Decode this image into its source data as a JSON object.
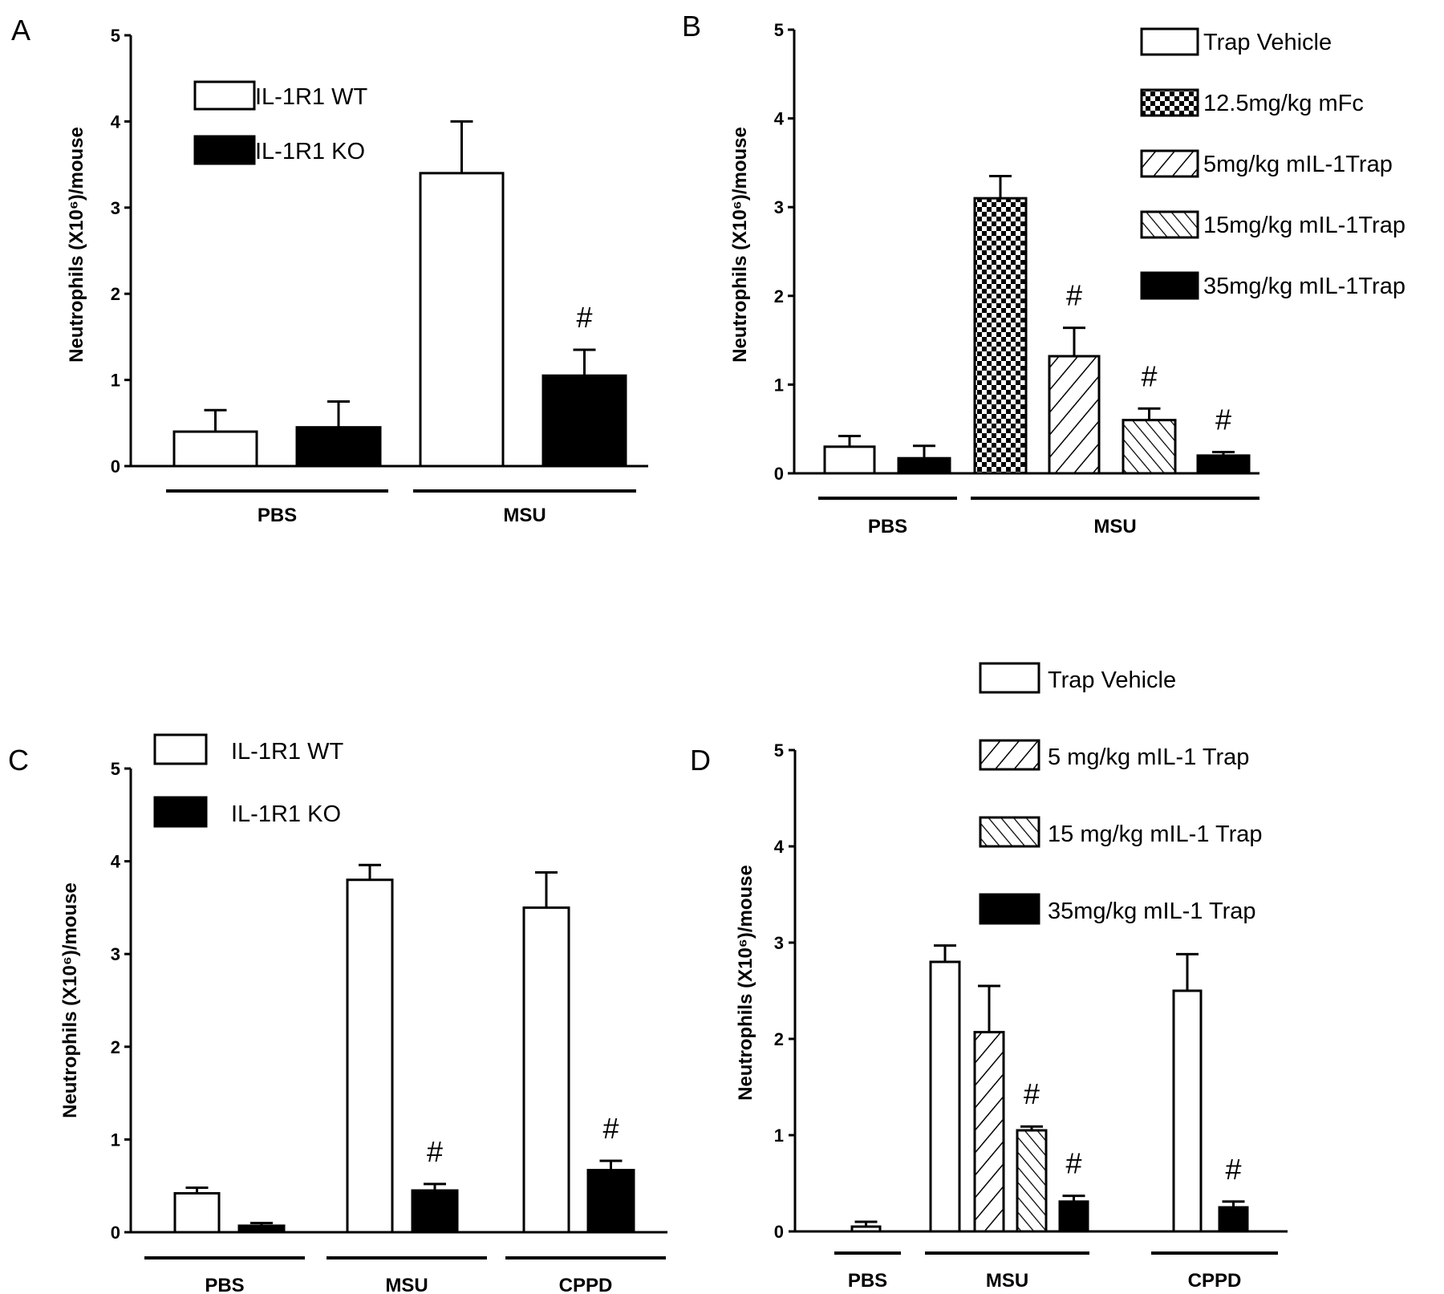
{
  "chart_data": [
    {
      "panel": "A",
      "type": "bar",
      "ylabel": "Neutrophils (X10⁶)/mouse",
      "ylim": [
        0,
        5
      ],
      "yticks": [
        "0",
        "1",
        "2",
        "3",
        "4",
        "5"
      ],
      "legend": [
        {
          "name": "IL-1R1 WT",
          "fill": "white"
        },
        {
          "name": "IL-1R1 KO",
          "fill": "black"
        }
      ],
      "bars": [
        {
          "series": "IL-1R1 WT",
          "group": "PBS",
          "value": 0.4,
          "error": 0.25,
          "sig": ""
        },
        {
          "series": "IL-1R1 KO",
          "group": "PBS",
          "value": 0.45,
          "error": 0.3,
          "sig": ""
        },
        {
          "series": "IL-1R1 WT",
          "group": "MSU",
          "value": 3.4,
          "error": 0.6,
          "sig": ""
        },
        {
          "series": "IL-1R1 KO",
          "group": "MSU",
          "value": 1.05,
          "error": 0.3,
          "sig": "#"
        }
      ],
      "groups": [
        "PBS",
        "MSU"
      ]
    },
    {
      "panel": "B",
      "type": "bar",
      "ylabel": "Neutrophils (X10⁶)/mouse",
      "ylim": [
        0,
        5
      ],
      "yticks": [
        "0",
        "1",
        "2",
        "3",
        "4",
        "5"
      ],
      "legend": [
        {
          "name": "Trap Vehicle",
          "fill": "white"
        },
        {
          "name": "12.5mg/kg mFc",
          "fill": "checker"
        },
        {
          "name": "5mg/kg mIL-1Trap",
          "fill": "hatch-wide"
        },
        {
          "name": "15mg/kg mIL-1Trap",
          "fill": "hatch-back"
        },
        {
          "name": "35mg/kg mIL-1Trap",
          "fill": "black"
        }
      ],
      "bars": [
        {
          "series": "Trap Vehicle",
          "group": "PBS",
          "value": 0.3,
          "error": 0.12,
          "sig": ""
        },
        {
          "series": "35mg/kg mIL-1Trap",
          "group": "PBS",
          "value": 0.17,
          "error": 0.14,
          "sig": ""
        },
        {
          "series": "12.5mg/kg mFc",
          "group": "MSU",
          "value": 3.1,
          "error": 0.25,
          "sig": ""
        },
        {
          "series": "5mg/kg mIL-1Trap",
          "group": "MSU",
          "value": 1.32,
          "error": 0.32,
          "sig": "#"
        },
        {
          "series": "15mg/kg mIL-1Trap",
          "group": "MSU",
          "value": 0.6,
          "error": 0.13,
          "sig": "#"
        },
        {
          "series": "35mg/kg mIL-1Trap",
          "group": "MSU",
          "value": 0.2,
          "error": 0.04,
          "sig": "#"
        }
      ],
      "groups": [
        "PBS",
        "MSU"
      ]
    },
    {
      "panel": "C",
      "type": "bar",
      "ylabel": "Neutrophils (X10⁶)/mouse",
      "ylim": [
        0,
        5
      ],
      "yticks": [
        "0",
        "1",
        "2",
        "3",
        "4",
        "5"
      ],
      "legend": [
        {
          "name": "IL-1R1 WT",
          "fill": "white"
        },
        {
          "name": "IL-1R1 KO",
          "fill": "black"
        }
      ],
      "bars": [
        {
          "series": "IL-1R1 WT",
          "group": "PBS",
          "value": 0.42,
          "error": 0.06,
          "sig": ""
        },
        {
          "series": "IL-1R1 KO",
          "group": "PBS",
          "value": 0.07,
          "error": 0.03,
          "sig": ""
        },
        {
          "series": "IL-1R1 WT",
          "group": "MSU",
          "value": 3.8,
          "error": 0.16,
          "sig": ""
        },
        {
          "series": "IL-1R1 KO",
          "group": "MSU",
          "value": 0.45,
          "error": 0.07,
          "sig": "#"
        },
        {
          "series": "IL-1R1 WT",
          "group": "CPPD",
          "value": 3.5,
          "error": 0.38,
          "sig": ""
        },
        {
          "series": "IL-1R1 KO",
          "group": "CPPD",
          "value": 0.67,
          "error": 0.1,
          "sig": "#"
        }
      ],
      "groups": [
        "PBS",
        "MSU",
        "CPPD"
      ]
    },
    {
      "panel": "D",
      "type": "bar",
      "ylabel": "Neutrophils (X10⁶)/mouse",
      "ylim": [
        0,
        5
      ],
      "yticks": [
        "0",
        "1",
        "2",
        "3",
        "4",
        "5"
      ],
      "legend": [
        {
          "name": "Trap Vehicle",
          "fill": "white"
        },
        {
          "name": "5 mg/kg mIL-1 Trap",
          "fill": "hatch-wide"
        },
        {
          "name": "15 mg/kg mIL-1 Trap",
          "fill": "hatch-back"
        },
        {
          "name": "35mg/kg mIL-1 Trap",
          "fill": "black"
        }
      ],
      "bars": [
        {
          "series": "Trap Vehicle",
          "group": "PBS",
          "value": 0.05,
          "error": 0.05,
          "sig": ""
        },
        {
          "series": "Trap Vehicle",
          "group": "MSU",
          "value": 2.8,
          "error": 0.17,
          "sig": ""
        },
        {
          "series": "5 mg/kg mIL-1 Trap",
          "group": "MSU",
          "value": 2.07,
          "error": 0.48,
          "sig": ""
        },
        {
          "series": "15 mg/kg mIL-1 Trap",
          "group": "MSU",
          "value": 1.05,
          "error": 0.04,
          "sig": "#"
        },
        {
          "series": "35mg/kg mIL-1 Trap",
          "group": "MSU",
          "value": 0.31,
          "error": 0.06,
          "sig": "#"
        },
        {
          "series": "Trap Vehicle",
          "group": "CPPD",
          "value": 2.5,
          "error": 0.38,
          "sig": ""
        },
        {
          "series": "35mg/kg mIL-1 Trap",
          "group": "CPPD",
          "value": 0.25,
          "error": 0.06,
          "sig": "#"
        }
      ],
      "groups": [
        "PBS",
        "MSU",
        "CPPD"
      ]
    }
  ]
}
